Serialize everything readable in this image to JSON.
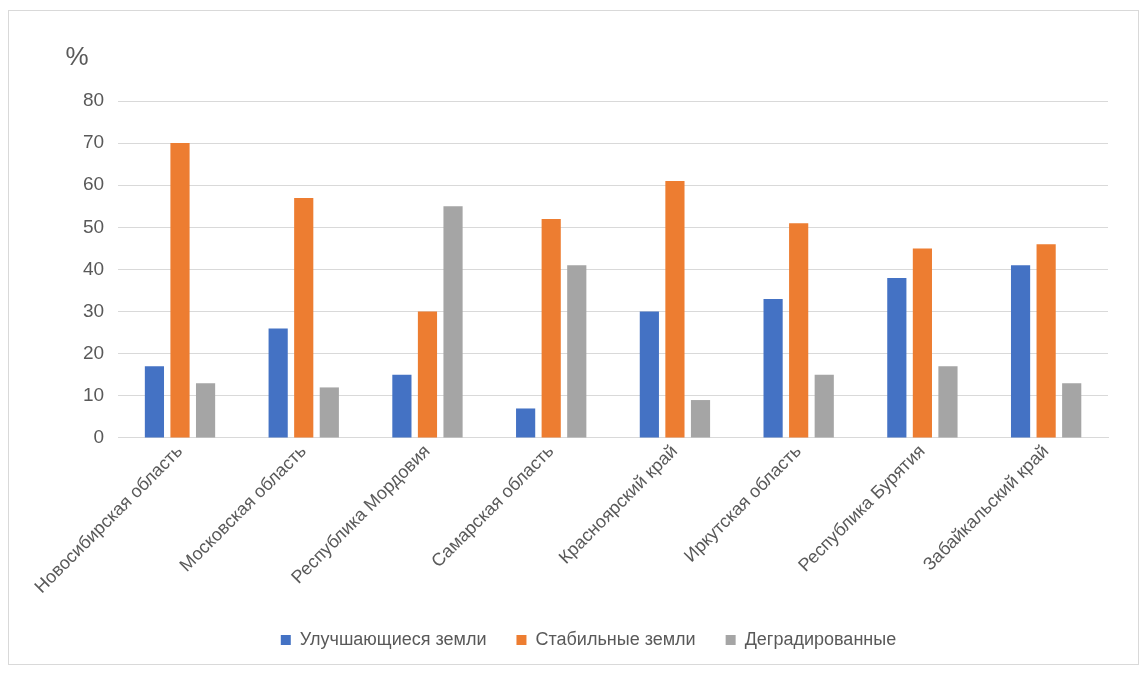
{
  "chart_data": {
    "type": "bar",
    "ylabel": "%",
    "categories": [
      "Новосибирская область",
      "Московская область",
      "Республика Мордовия",
      "Самарская область",
      "Красноярский край",
      "Иркутская область",
      "Республика Бурятия",
      "Забайкальский край"
    ],
    "series": [
      {
        "name": "Улучшающиеся земли",
        "color": "#4472c4",
        "values": [
          17,
          26,
          15,
          7,
          30,
          33,
          38,
          41
        ]
      },
      {
        "name": "Стабильные земли",
        "color": "#ed7d31",
        "values": [
          70,
          57,
          30,
          52,
          61,
          51,
          45,
          46
        ]
      },
      {
        "name": "Деградированные",
        "color": "#a5a5a5",
        "values": [
          13,
          12,
          55,
          41,
          9,
          15,
          17,
          13
        ]
      }
    ],
    "ylim": [
      0,
      80
    ],
    "yticks": [
      0,
      10,
      20,
      30,
      40,
      50,
      60,
      70,
      80
    ],
    "grid": "y",
    "legend": "bottom"
  }
}
